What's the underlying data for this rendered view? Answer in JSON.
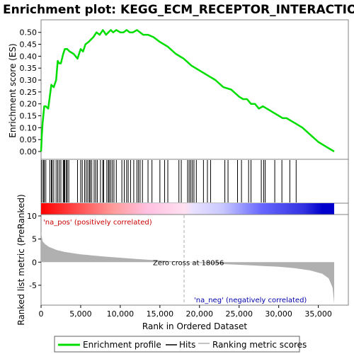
{
  "chart_data": {
    "type": "line",
    "title": "Enrichment plot: KEGG_ECM_RECEPTOR_INTERACTION",
    "top_panel": {
      "ylabel": "Enrichment score (ES)",
      "ylim": [
        0.0,
        0.55
      ],
      "yticks": [
        0.0,
        0.05,
        0.1,
        0.15,
        0.2,
        0.25,
        0.3,
        0.35,
        0.4,
        0.45,
        0.5
      ],
      "ytick_labels": [
        "0.00",
        "0.05",
        "0.10",
        "0.15",
        "0.20",
        "0.25",
        "0.30",
        "0.35",
        "0.40",
        "0.45",
        "0.50"
      ],
      "series": [
        {
          "name": "Enrichment profile",
          "color": "#00dd00",
          "x": [
            0,
            100,
            200,
            400,
            600,
            900,
            1100,
            1300,
            1600,
            1900,
            2100,
            2300,
            2500,
            2800,
            3000,
            3300,
            3600,
            4100,
            4600,
            5000,
            5300,
            5600,
            6000,
            6300,
            6600,
            7000,
            7400,
            7800,
            8200,
            8500,
            8800,
            9100,
            9500,
            10000,
            10400,
            10800,
            11200,
            11600,
            12100,
            12500,
            12900,
            13500,
            14200,
            15000,
            16000,
            17000,
            18000,
            19000,
            20000,
            21000,
            22000,
            23000,
            24000,
            25000,
            25500,
            26000,
            26500,
            27000,
            27500,
            28000,
            28500,
            29000,
            29500,
            30000,
            30500,
            31000,
            31500,
            32000,
            33000,
            34000,
            35000,
            36000,
            37000
          ],
          "y": [
            0.0,
            0.07,
            0.12,
            0.19,
            0.19,
            0.18,
            0.23,
            0.28,
            0.27,
            0.3,
            0.38,
            0.37,
            0.37,
            0.41,
            0.43,
            0.43,
            0.42,
            0.41,
            0.39,
            0.43,
            0.42,
            0.45,
            0.46,
            0.47,
            0.48,
            0.5,
            0.49,
            0.51,
            0.49,
            0.5,
            0.51,
            0.5,
            0.51,
            0.5,
            0.5,
            0.51,
            0.5,
            0.5,
            0.51,
            0.5,
            0.49,
            0.49,
            0.48,
            0.46,
            0.44,
            0.41,
            0.39,
            0.36,
            0.34,
            0.32,
            0.3,
            0.27,
            0.26,
            0.23,
            0.22,
            0.22,
            0.2,
            0.2,
            0.18,
            0.19,
            0.18,
            0.17,
            0.16,
            0.15,
            0.14,
            0.14,
            0.13,
            0.12,
            0.1,
            0.07,
            0.04,
            0.02,
            0.0
          ]
        }
      ]
    },
    "hits": {
      "name": "Hits",
      "positions": [
        100,
        300,
        400,
        600,
        1100,
        1300,
        1400,
        1600,
        1900,
        2100,
        2300,
        2500,
        2800,
        2900,
        3000,
        3200,
        3300,
        3500,
        4600,
        5000,
        5200,
        5500,
        5700,
        5900,
        6100,
        6200,
        6400,
        6700,
        6900,
        7100,
        7500,
        7800,
        7900,
        8300,
        8500,
        8600,
        8800,
        9000,
        9200,
        9500,
        10200,
        10500,
        10800,
        11000,
        11300,
        11700,
        12100,
        12300,
        12500,
        12800,
        13500,
        14000,
        15000,
        15600,
        16000,
        17400,
        17700,
        18500,
        18700,
        18900,
        19100,
        19300,
        19600,
        20500,
        21000,
        21400,
        23200,
        23600,
        24800,
        25300,
        26200,
        26500,
        27800,
        28100,
        28300,
        29500,
        30400,
        31400,
        32200
      ]
    },
    "bottom_panel": {
      "ylabel": "Ranked list metric (PreRanked)",
      "ylim": [
        -9,
        10
      ],
      "yticks": [
        10,
        5,
        0,
        -5
      ],
      "ytick_labels": [
        "10",
        "5",
        "0",
        "-5"
      ],
      "series": [
        {
          "name": "Ranking metric scores",
          "color": "#b0b0b0",
          "x": [
            0,
            200,
            500,
            1000,
            2000,
            3000,
            5000,
            8000,
            12000,
            16000,
            18056,
            22000,
            26000,
            30000,
            32000,
            34000,
            35500,
            36300,
            36800,
            37000
          ],
          "y": [
            6.5,
            4.5,
            3.9,
            3.3,
            2.6,
            2.2,
            1.7,
            1.2,
            0.7,
            0.25,
            0.0,
            -0.35,
            -0.65,
            -1.0,
            -1.3,
            -1.8,
            -2.5,
            -3.5,
            -5.5,
            -9.0
          ]
        }
      ],
      "zero_cross": 18056,
      "zero_cross_label": "Zero cross at 18056",
      "pos_label": "'na_pos' (positively correlated)",
      "neg_label": "'na_neg' (negatively correlated)"
    },
    "xlabel": "Rank in Ordered Dataset",
    "xlim": [
      0,
      37000
    ],
    "xticks": [
      0,
      5000,
      10000,
      15000,
      20000,
      25000,
      30000,
      35000
    ],
    "xtick_labels": [
      "0",
      "5,000",
      "10,000",
      "15,000",
      "20,000",
      "25,000",
      "30,000",
      "35,000"
    ],
    "legend": {
      "placement": "bottom",
      "entries": [
        {
          "label": "Enrichment profile",
          "color": "#00dd00"
        },
        {
          "label": "Hits",
          "color": "#000000"
        },
        {
          "label": "Ranking metric scores",
          "color": "#b0b0b0"
        }
      ]
    },
    "colors": {
      "pos_label": "#cc0000",
      "neg_label": "#0000aa",
      "heat_positive": "#ff0000",
      "heat_negative": "#0000cc"
    }
  }
}
